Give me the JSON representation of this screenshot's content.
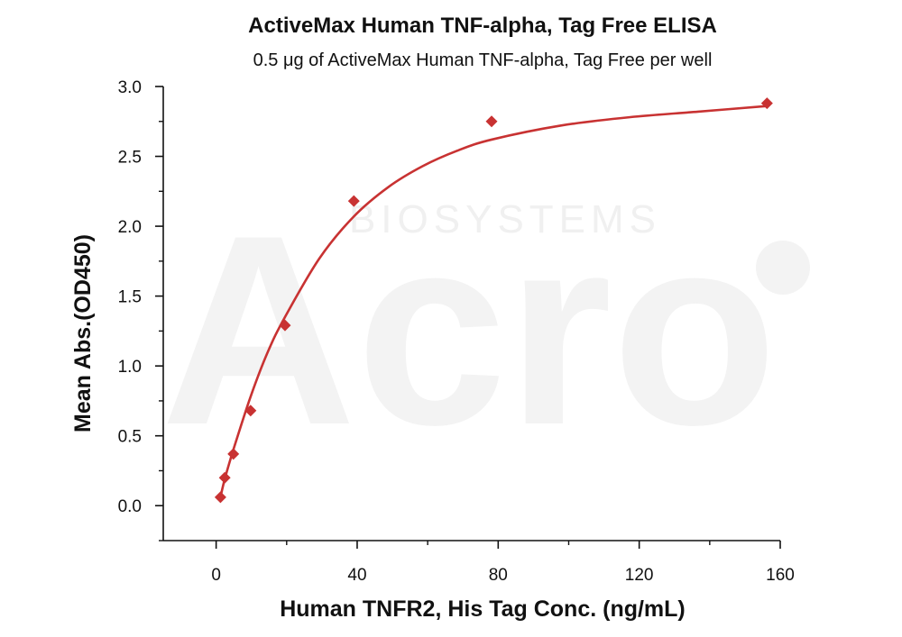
{
  "watermark": {
    "logo_text": "Acro",
    "logo_subtext": "BIOSYSTEMS"
  },
  "chart_data": {
    "type": "scatter",
    "title": "ActiveMax Human TNF-alpha, Tag Free ELISA",
    "subtitle": "0.5 μg of ActiveMax Human TNF-alpha, Tag Free per well",
    "xlabel": "Human TNFR2, His Tag Conc. (ng/mL)",
    "ylabel": "Mean Abs.(OD450)",
    "xlim": [
      -15,
      160
    ],
    "ylim": [
      -0.25,
      3.0
    ],
    "x_ticks": [
      0,
      40,
      80,
      120,
      160
    ],
    "y_ticks": [
      0.0,
      0.5,
      1.0,
      1.5,
      2.0,
      2.5,
      3.0
    ],
    "x_tick_labels": [
      "0",
      "40",
      "80",
      "120",
      "160"
    ],
    "y_tick_labels": [
      "0.0",
      "0.5",
      "1.0",
      "1.5",
      "2.0",
      "2.5",
      "3.0"
    ],
    "grid": false,
    "series": [
      {
        "marker": "diamond",
        "color": "#c83232",
        "x": [
          1.22,
          2.44,
          4.88,
          9.77,
          19.53,
          39.06,
          78.13,
          156.25
        ],
        "y": [
          0.06,
          0.2,
          0.37,
          0.68,
          1.29,
          2.18,
          2.75,
          2.88
        ]
      }
    ],
    "fit_curve": {
      "color": "#c83232",
      "x": [
        1.22,
        2.44,
        4.88,
        9.77,
        14.65,
        19.53,
        29.3,
        39.06,
        48.83,
        58.59,
        68.36,
        78.13,
        97.66,
        117.19,
        136.72,
        156.25
      ],
      "y": [
        0.06,
        0.19,
        0.4,
        0.78,
        1.1,
        1.35,
        1.77,
        2.07,
        2.28,
        2.43,
        2.54,
        2.62,
        2.72,
        2.78,
        2.82,
        2.86
      ]
    }
  }
}
